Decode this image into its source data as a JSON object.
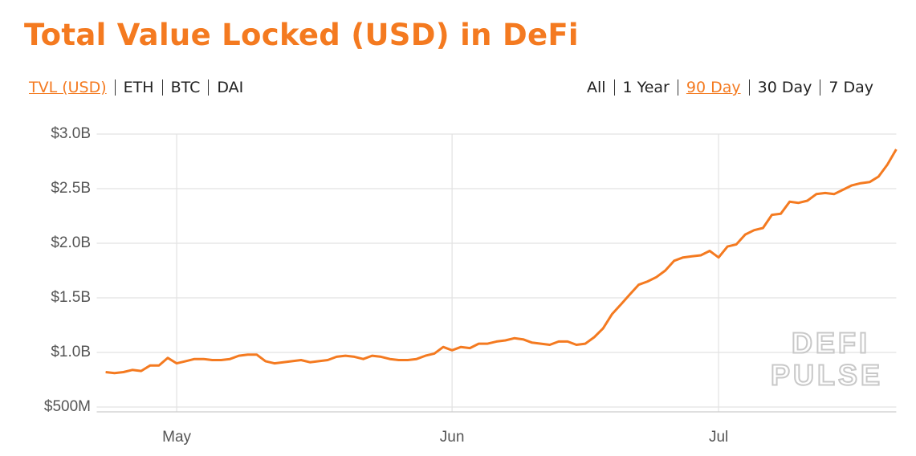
{
  "chart_data": {
    "type": "line",
    "title": "Total Value Locked (USD) in DeFi",
    "metric_tabs": [
      "TVL (USD)",
      "ETH",
      "BTC",
      "DAI"
    ],
    "range_tabs": [
      "All",
      "1 Year",
      "90 Day",
      "30 Day",
      "7 Day"
    ],
    "watermark": [
      "DEFI",
      "PULSE"
    ],
    "x": [
      0,
      1,
      2,
      3,
      4,
      5,
      6,
      7,
      8,
      9,
      10,
      11,
      12,
      13,
      14,
      15,
      16,
      17,
      18,
      19,
      20,
      21,
      22,
      23,
      24,
      25,
      26,
      27,
      28,
      29,
      30,
      31,
      32,
      33,
      34,
      35,
      36,
      37,
      38,
      39,
      40,
      41,
      42,
      43,
      44,
      45,
      46,
      47,
      48,
      49,
      50,
      51,
      52,
      53,
      54,
      55,
      56,
      57,
      58,
      59,
      60,
      61,
      62,
      63,
      64,
      65,
      66,
      67,
      68,
      69,
      70,
      71,
      72,
      73,
      74,
      75,
      76,
      77,
      78,
      79,
      80,
      81,
      82,
      83,
      84,
      85,
      86,
      87,
      88,
      89
    ],
    "series": [
      {
        "name": "TVL (USD)",
        "color": "#f47a20",
        "values": [
          0.82,
          0.81,
          0.82,
          0.84,
          0.83,
          0.88,
          0.88,
          0.95,
          0.9,
          0.92,
          0.94,
          0.94,
          0.93,
          0.93,
          0.94,
          0.97,
          0.98,
          0.98,
          0.92,
          0.9,
          0.91,
          0.92,
          0.93,
          0.91,
          0.92,
          0.93,
          0.96,
          0.97,
          0.96,
          0.94,
          0.97,
          0.96,
          0.94,
          0.93,
          0.93,
          0.94,
          0.97,
          0.99,
          1.05,
          1.02,
          1.05,
          1.04,
          1.08,
          1.08,
          1.1,
          1.11,
          1.13,
          1.12,
          1.09,
          1.08,
          1.07,
          1.1,
          1.1,
          1.07,
          1.08,
          1.14,
          1.22,
          1.35,
          1.44,
          1.53,
          1.62,
          1.65,
          1.69,
          1.75,
          1.84,
          1.87,
          1.88,
          1.89,
          1.93,
          1.87,
          1.97,
          1.99,
          2.08,
          2.12,
          2.14,
          2.26,
          2.27,
          2.38,
          2.37,
          2.39,
          2.45,
          2.46,
          2.45,
          2.49,
          2.53,
          2.55,
          2.56,
          2.61,
          2.72,
          2.86
        ]
      }
    ],
    "xlim": [
      -1,
      89
    ],
    "xticks": [
      {
        "value": 8,
        "label": "May"
      },
      {
        "value": 39,
        "label": "Jun"
      },
      {
        "value": 69,
        "label": "Jul"
      }
    ],
    "ylim": [
      0.5,
      3.0
    ],
    "yticks": [
      {
        "value": 0.5,
        "label": "$500M"
      },
      {
        "value": 1.0,
        "label": "$1.0B"
      },
      {
        "value": 1.5,
        "label": "$1.5B"
      },
      {
        "value": 2.0,
        "label": "$2.0B"
      },
      {
        "value": 2.5,
        "label": "$2.5B"
      },
      {
        "value": 3.0,
        "label": "$3.0B"
      }
    ],
    "grid": true
  }
}
